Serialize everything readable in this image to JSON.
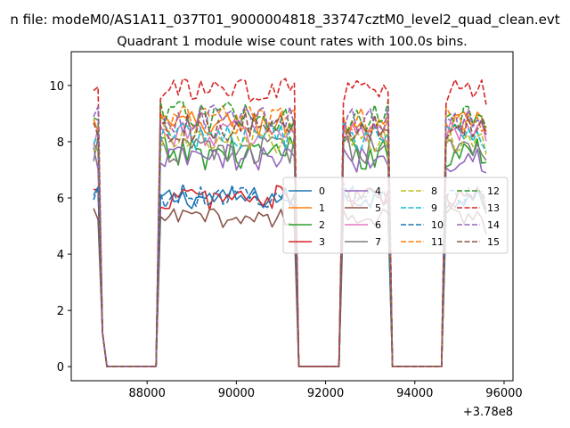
{
  "figure": {
    "suptitle": "n file: modeM0/AS1A11_037T01_9000004818_33747cztM0_level2_quad_clean.evt",
    "title": "Quadrant 1 module wise count rates with 100.0s bins.",
    "x_offset_label": "+3.78e8"
  },
  "chart_data": {
    "type": "line",
    "title": "Quadrant 1 module wise count rates with 100.0s bins.",
    "xlabel": "",
    "ylabel": "",
    "x_offset": 378000000,
    "xlim": [
      86300,
      96200
    ],
    "ylim": [
      -0.5,
      11.2
    ],
    "xticks": [
      88000,
      90000,
      92000,
      94000,
      96000
    ],
    "xtick_labels": [
      "88000",
      "90000",
      "92000",
      "94000",
      "96000"
    ],
    "yticks": [
      0,
      2,
      4,
      6,
      8,
      10
    ],
    "ytick_labels": [
      "0",
      "2",
      "4",
      "6",
      "8",
      "10"
    ],
    "grid": false,
    "legend_position": "center-right",
    "legend_columns": 4,
    "segments": [
      {
        "start": 86800,
        "end": 87000,
        "bins": 3
      },
      {
        "start": 87100,
        "end": 88200,
        "bins": 12
      },
      {
        "start": 88300,
        "end": 91300,
        "bins": 31
      },
      {
        "start": 91400,
        "end": 92300,
        "bins": 10
      },
      {
        "start": 92400,
        "end": 93400,
        "bins": 11
      },
      {
        "start": 93500,
        "end": 94600,
        "bins": 12
      },
      {
        "start": 94700,
        "end": 95600,
        "bins": 10
      }
    ],
    "series": [
      {
        "name": "0",
        "color": "#1f77b4",
        "dash": "solid",
        "level": 6.0,
        "amp": 0.4
      },
      {
        "name": "1",
        "color": "#ff7f0e",
        "dash": "solid",
        "level": 8.6,
        "amp": 0.5
      },
      {
        "name": "2",
        "color": "#2ca02c",
        "dash": "solid",
        "level": 7.6,
        "amp": 0.6
      },
      {
        "name": "3",
        "color": "#d62728",
        "dash": "solid",
        "level": 6.0,
        "amp": 0.45
      },
      {
        "name": "4",
        "color": "#9467bd",
        "dash": "solid",
        "level": 7.4,
        "amp": 0.5
      },
      {
        "name": "5",
        "color": "#8c564b",
        "dash": "solid",
        "level": 5.3,
        "amp": 0.35
      },
      {
        "name": "6",
        "color": "#e377c2",
        "dash": "solid",
        "level": 8.3,
        "amp": 0.5
      },
      {
        "name": "7",
        "color": "#7f7f7f",
        "dash": "solid",
        "level": 7.7,
        "amp": 0.5
      },
      {
        "name": "8",
        "color": "#bcbd22",
        "dash": "dashed",
        "level": 8.0,
        "amp": 0.5
      },
      {
        "name": "9",
        "color": "#17becf",
        "dash": "dashed",
        "level": 8.2,
        "amp": 0.5
      },
      {
        "name": "10",
        "color": "#1f77b4",
        "dash": "dashed",
        "level": 6.1,
        "amp": 0.45
      },
      {
        "name": "11",
        "color": "#ff7f0e",
        "dash": "dashed",
        "level": 8.8,
        "amp": 0.5
      },
      {
        "name": "12",
        "color": "#2ca02c",
        "dash": "dashed",
        "level": 8.9,
        "amp": 0.55
      },
      {
        "name": "13",
        "color": "#d62728",
        "dash": "dashed",
        "level": 9.8,
        "amp": 0.45
      },
      {
        "name": "14",
        "color": "#9467bd",
        "dash": "dashed",
        "level": 8.8,
        "amp": 0.5
      },
      {
        "name": "15",
        "color": "#8c564b",
        "dash": "dashed",
        "level": 8.5,
        "amp": 0.55
      }
    ]
  }
}
